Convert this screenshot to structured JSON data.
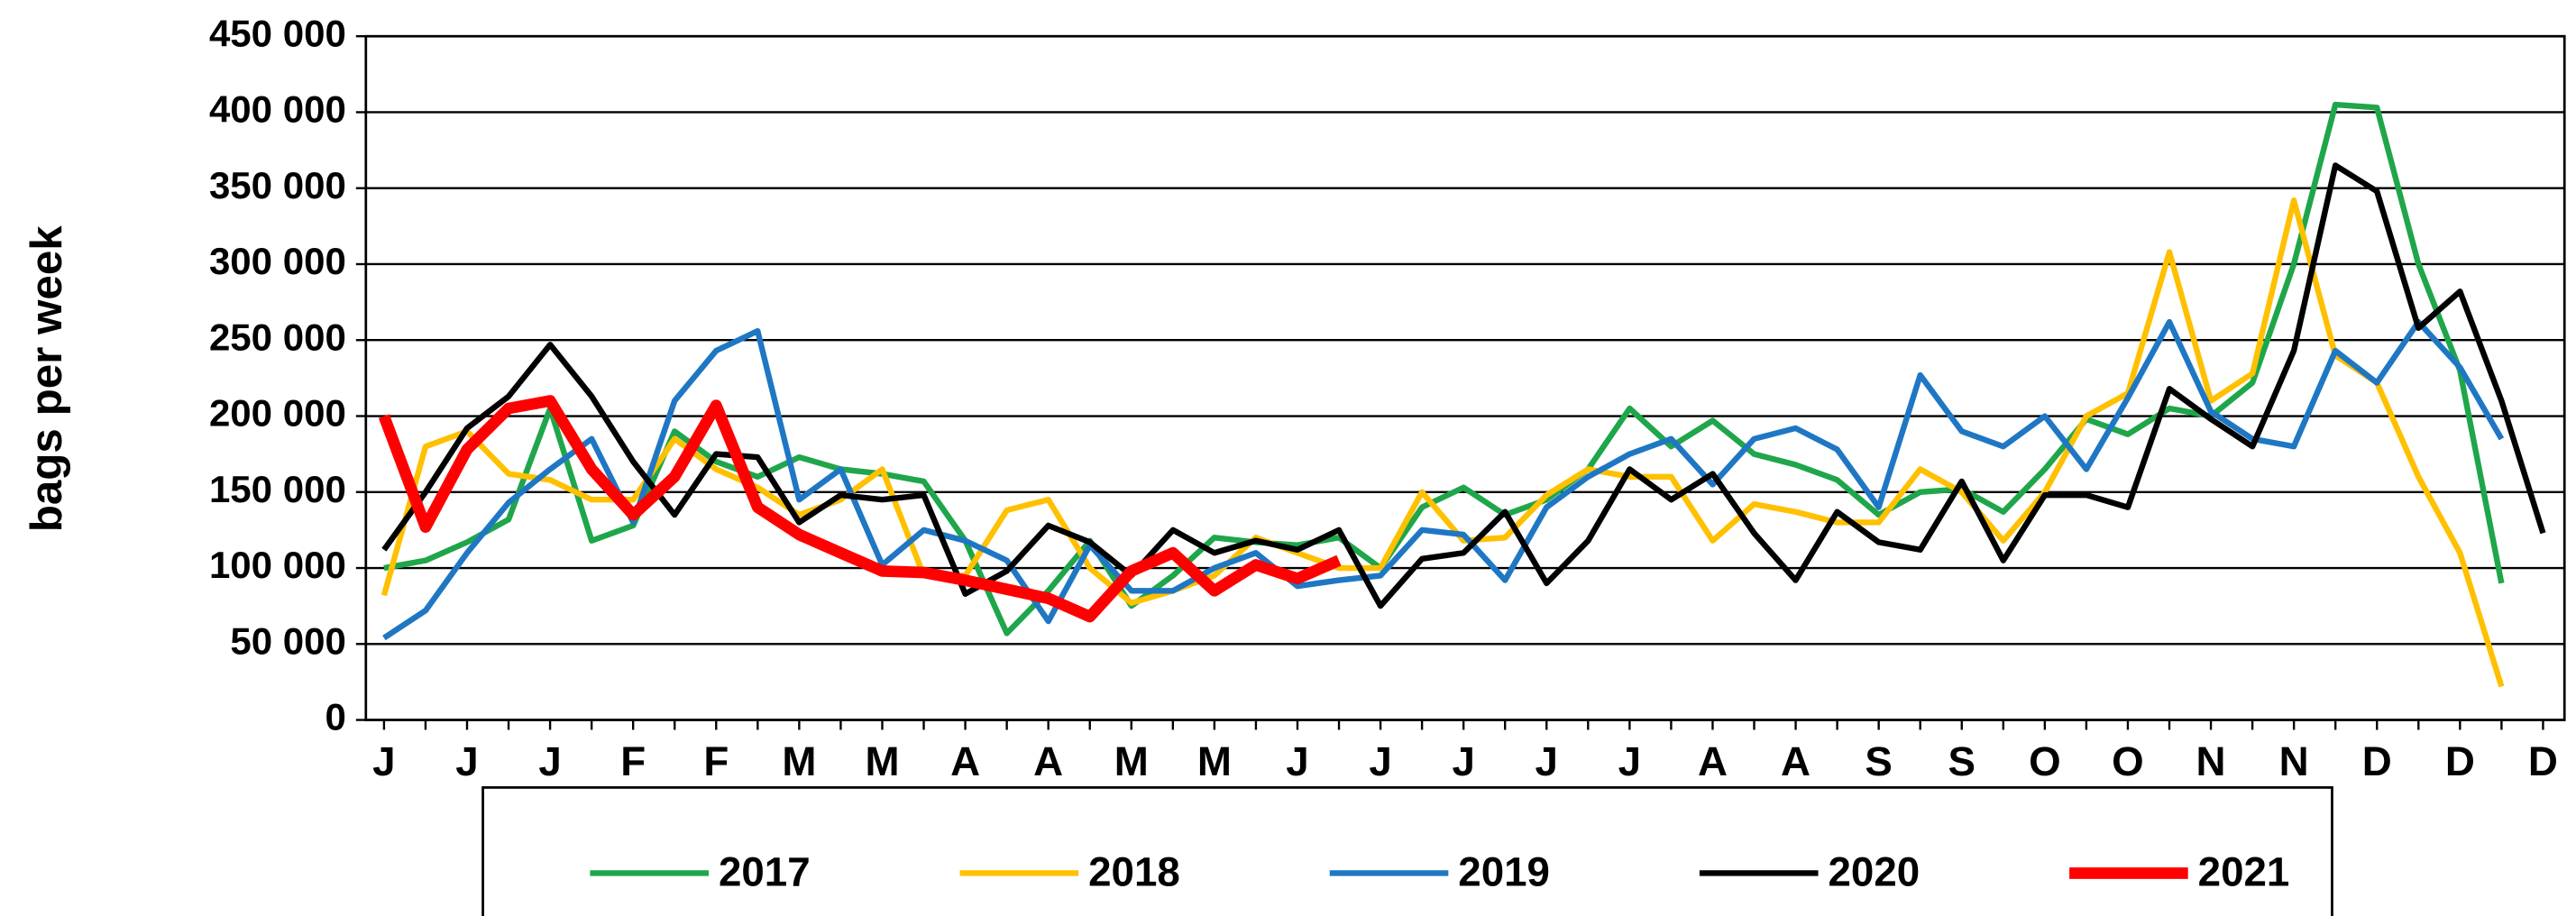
{
  "chart_data": {
    "type": "line",
    "y_label": "bags per week",
    "categories": [
      "J",
      null,
      "J",
      null,
      "J",
      null,
      "F",
      null,
      "F",
      null,
      "M",
      null,
      "M",
      null,
      "A",
      null,
      "A",
      null,
      "M",
      null,
      "M",
      null,
      "J",
      null,
      "J",
      null,
      "J",
      null,
      "J",
      null,
      "J",
      null,
      "A",
      null,
      "A",
      null,
      "S",
      null,
      "S",
      null,
      "O",
      null,
      "O",
      null,
      "N",
      null,
      "N",
      null,
      "D",
      null,
      "D",
      null,
      "D"
    ],
    "ylim": [
      0,
      450000
    ],
    "yticks": [
      0,
      {
        "value": 50000,
        "label": "50 000"
      },
      {
        "value": 100000,
        "label": "100 000"
      },
      {
        "value": 150000,
        "label": "150 000"
      },
      {
        "value": 200000,
        "label": "200 000"
      },
      {
        "value": 250000,
        "label": "250 000"
      },
      {
        "value": 300000,
        "label": "300 000"
      },
      {
        "value": 350000,
        "label": "350 000"
      },
      {
        "value": 400000,
        "label": "400 000"
      },
      {
        "value": 450000,
        "label": "450 000"
      }
    ],
    "grid": true,
    "legend": "bottom",
    "series": [
      {
        "name": "2017",
        "color": "#1fa64a",
        "line_width": 3.5,
        "values": [
          100000,
          105000,
          117000,
          132000,
          205000,
          118000,
          128000,
          190000,
          170000,
          160000,
          173000,
          165000,
          162000,
          157000,
          118000,
          57000,
          85000,
          118000,
          75000,
          95000,
          120000,
          117000,
          115000,
          120000,
          100000,
          140000,
          153000,
          135000,
          145000,
          165000,
          205000,
          180000,
          197000,
          175000,
          168000,
          158000,
          135000,
          150000,
          152000,
          137000,
          165000,
          198000,
          188000,
          205000,
          200000,
          222000,
          300000,
          405000,
          403000,
          300000,
          230000,
          90000,
          null
        ]
      },
      {
        "name": "2018",
        "color": "#ffc000",
        "line_width": 3.5,
        "values": [
          82000,
          180000,
          190000,
          162000,
          158000,
          145000,
          145000,
          185000,
          165000,
          153000,
          135000,
          145000,
          165000,
          95000,
          95000,
          138000,
          145000,
          100000,
          77000,
          85000,
          95000,
          120000,
          110000,
          100000,
          100000,
          150000,
          118000,
          120000,
          148000,
          165000,
          160000,
          160000,
          118000,
          142000,
          137000,
          130000,
          130000,
          165000,
          150000,
          118000,
          150000,
          200000,
          215000,
          308000,
          210000,
          228000,
          342000,
          240000,
          222000,
          160000,
          110000,
          22000,
          null
        ]
      },
      {
        "name": "2019",
        "color": "#1f77c4",
        "line_width": 3.5,
        "values": [
          54000,
          72000,
          110000,
          143000,
          165000,
          185000,
          130000,
          210000,
          243000,
          256000,
          145000,
          165000,
          102000,
          125000,
          118000,
          105000,
          65000,
          115000,
          85000,
          85000,
          100000,
          110000,
          88000,
          92000,
          95000,
          125000,
          122000,
          92000,
          140000,
          160000,
          175000,
          185000,
          155000,
          185000,
          192000,
          178000,
          140000,
          227000,
          190000,
          180000,
          200000,
          165000,
          212000,
          262000,
          203000,
          185000,
          180000,
          243000,
          222000,
          262000,
          232000,
          185000,
          null
        ]
      },
      {
        "name": "2020",
        "color": "#000000",
        "line_width": 3.5,
        "values": [
          112000,
          150000,
          192000,
          213000,
          247000,
          213000,
          170000,
          135000,
          175000,
          173000,
          130000,
          148000,
          145000,
          148000,
          83000,
          98000,
          128000,
          117000,
          95000,
          125000,
          110000,
          118000,
          112000,
          125000,
          75000,
          106000,
          110000,
          137000,
          90000,
          118000,
          165000,
          145000,
          162000,
          123000,
          92000,
          137000,
          117000,
          112000,
          157000,
          105000,
          148000,
          148000,
          140000,
          218000,
          198000,
          180000,
          243000,
          365000,
          348000,
          258000,
          282000,
          210000,
          123000
        ]
      },
      {
        "name": "2021",
        "color": "#ff0000",
        "line_width": 7,
        "values": [
          200000,
          127000,
          178000,
          205000,
          210000,
          165000,
          135000,
          160000,
          207000,
          140000,
          122000,
          110000,
          98000,
          97000,
          92000,
          86000,
          80000,
          68000,
          98000,
          110000,
          85000,
          102000,
          93000,
          105000,
          null,
          null,
          null,
          null,
          null,
          null,
          null,
          null,
          null,
          null,
          null,
          null,
          null,
          null,
          null,
          null,
          null,
          null,
          null,
          null,
          null,
          null,
          null,
          null,
          null,
          null,
          null,
          null,
          null
        ]
      }
    ]
  }
}
